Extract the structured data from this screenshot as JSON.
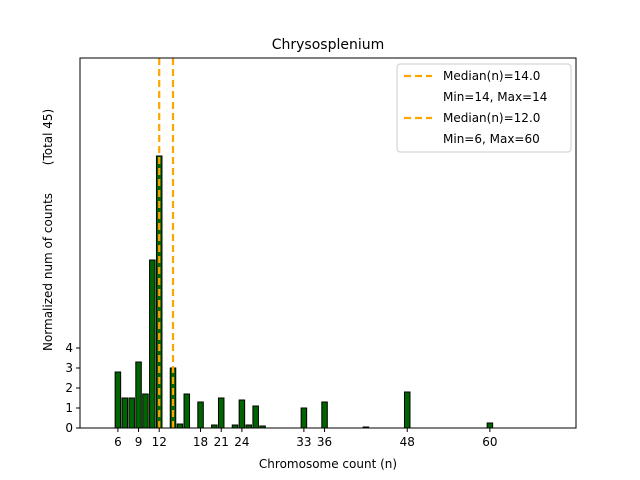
{
  "chart_data": {
    "type": "bar",
    "title": "Chrysosplenium",
    "xlabel": "Chromosome count (n)",
    "ylabel": "Normalized num of counts",
    "ylabel_note": "(Total 45)",
    "xlim": [
      0.5,
      72.5
    ],
    "ylim": [
      0,
      18.5
    ],
    "xticks": [
      6,
      9,
      12,
      18,
      21,
      24,
      33,
      36,
      48,
      60
    ],
    "yticks": [
      0,
      1,
      2,
      3,
      4
    ],
    "bar_color": "#006400",
    "bar_edge": "#000000",
    "median_color": "#FFA500",
    "bars": [
      {
        "x": 6,
        "value": 2.8
      },
      {
        "x": 7,
        "value": 1.5
      },
      {
        "x": 8,
        "value": 1.5
      },
      {
        "x": 9,
        "value": 3.3
      },
      {
        "x": 10,
        "value": 1.7
      },
      {
        "x": 11,
        "value": 8.4
      },
      {
        "x": 12,
        "value": 13.6
      },
      {
        "x": 14,
        "value": 3.0
      },
      {
        "x": 15,
        "value": 0.2
      },
      {
        "x": 16,
        "value": 1.7
      },
      {
        "x": 18,
        "value": 1.3
      },
      {
        "x": 20,
        "value": 0.15
      },
      {
        "x": 21,
        "value": 1.5
      },
      {
        "x": 23,
        "value": 0.15
      },
      {
        "x": 24,
        "value": 1.4
      },
      {
        "x": 25,
        "value": 0.15
      },
      {
        "x": 26,
        "value": 1.1
      },
      {
        "x": 27,
        "value": 0.1
      },
      {
        "x": 33,
        "value": 1.0
      },
      {
        "x": 36,
        "value": 1.3
      },
      {
        "x": 42,
        "value": 0.05
      },
      {
        "x": 48,
        "value": 1.8
      },
      {
        "x": 60,
        "value": 0.25
      }
    ],
    "medians": [
      {
        "x": 14.0,
        "label": "Median(n)=14.0",
        "range_label": "Min=14, Max=14"
      },
      {
        "x": 12.0,
        "label": "Median(n)=12.0",
        "range_label": "Min=6, Max=60"
      }
    ]
  }
}
